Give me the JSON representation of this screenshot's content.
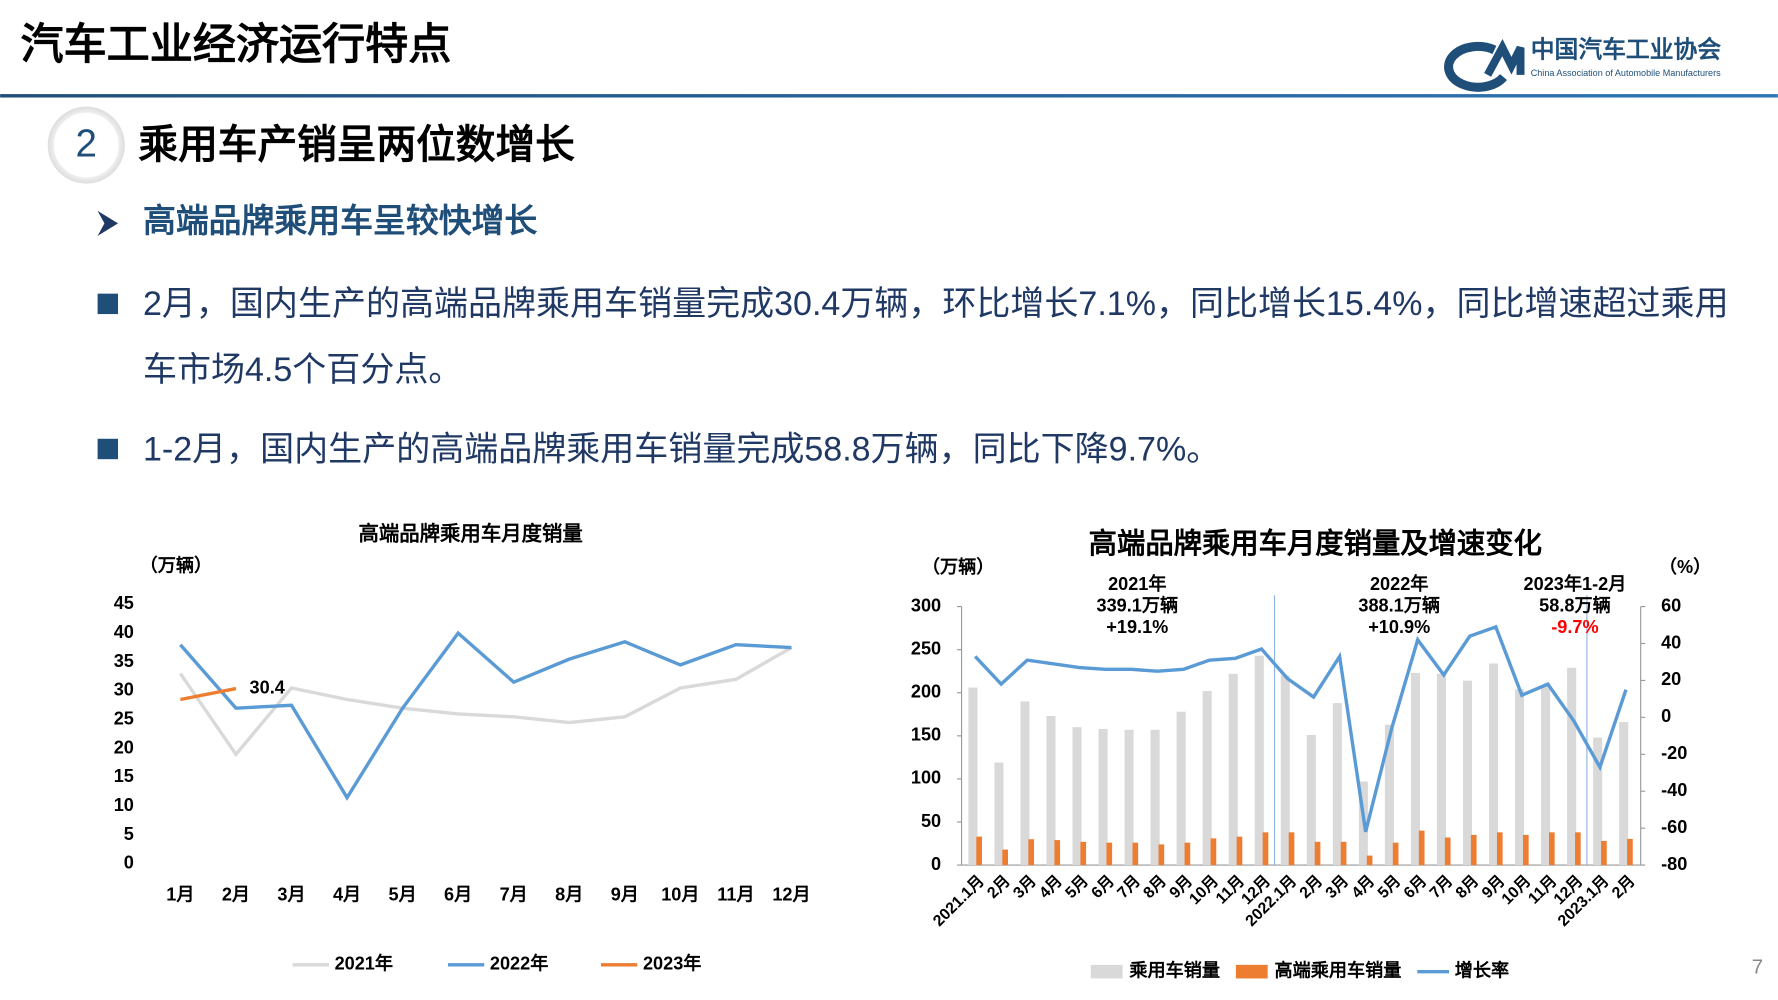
{
  "header": {
    "title": "汽车工业经济运行特点",
    "logo_name": "中国汽车工业协会",
    "logo_en": "China Association of Automobile Manufacturers"
  },
  "section": {
    "number": "2",
    "title": "乘用车产销呈两位数增长"
  },
  "subheading": "高端品牌乘用车呈较快增长",
  "bullets": [
    "2月，国内生产的高端品牌乘用车销量完成30.4万辆，环比增长7.1%，同比增长15.4%，同比增速超过乘用车市场4.5个百分点。",
    "1-2月，国内生产的高端品牌乘用车销量完成58.8万辆，同比下降9.7%。"
  ],
  "page_number": "7",
  "chart_data": [
    {
      "type": "line",
      "title": "高端品牌乘用车月度销量",
      "y_label": "（万辆）",
      "categories": [
        "1月",
        "2月",
        "3月",
        "4月",
        "5月",
        "6月",
        "7月",
        "8月",
        "9月",
        "10月",
        "11月",
        "12月"
      ],
      "ylim": [
        0,
        45
      ],
      "yticks": [
        0,
        5,
        10,
        15,
        20,
        25,
        30,
        35,
        40,
        45
      ],
      "grid": false,
      "legend": "bottom",
      "series": [
        {
          "name": "2021年",
          "color": "#d9d9d9",
          "values": [
            33,
            19,
            30.5,
            28.5,
            27,
            26,
            25.5,
            24.5,
            25.5,
            30.5,
            32,
            37.5
          ]
        },
        {
          "name": "2022年",
          "color": "#5b9bd5",
          "values": [
            38,
            27,
            27.5,
            11.5,
            27,
            40,
            31.5,
            35.5,
            38.5,
            34.5,
            38,
            37.5
          ]
        },
        {
          "name": "2023年",
          "color": "#ed7d31",
          "values": [
            28.5,
            30.4,
            null,
            null,
            null,
            null,
            null,
            null,
            null,
            null,
            null,
            null
          ],
          "label_last": true
        }
      ]
    },
    {
      "type": "bar",
      "title": "高端品牌乘用车月度销量及增速变化",
      "y_label": "（万辆）",
      "y2_label": "（%）",
      "categories": [
        "2021.1月",
        "2月",
        "3月",
        "4月",
        "5月",
        "6月",
        "7月",
        "8月",
        "9月",
        "10月",
        "11月",
        "12月",
        "2022.1月",
        "2月",
        "3月",
        "4月",
        "5月",
        "6月",
        "7月",
        "8月",
        "9月",
        "10月",
        "11月",
        "12月",
        "2023.1月",
        "2月"
      ],
      "ylim": [
        0,
        300
      ],
      "yticks": [
        0,
        50,
        100,
        150,
        200,
        250,
        300
      ],
      "y2lim": [
        -80,
        60
      ],
      "y2ticks": [
        -80,
        -60,
        -40,
        -20,
        0,
        20,
        40,
        60
      ],
      "grid": false,
      "legend": "bottom",
      "series": [
        {
          "name": "乘用车销量",
          "color": "#d9d9d9",
          "values": [
            206,
            119,
            190,
            173,
            160,
            158,
            157,
            157,
            178,
            202,
            222,
            243,
            220,
            151,
            188,
            97,
            163,
            223,
            222,
            214,
            234,
            204,
            208,
            229,
            148,
            166
          ]
        },
        {
          "name": "高端乘用车销量",
          "color": "#ed7d31",
          "values": [
            33,
            18,
            30,
            29,
            27,
            26,
            26,
            24,
            26,
            31,
            33,
            38,
            38,
            27,
            27,
            11,
            26,
            40,
            32,
            35,
            38,
            35,
            38,
            38,
            28,
            30.4
          ]
        },
        {
          "name": "增长率",
          "color": "#5b9bd5",
          "axis": "y2",
          "type": "line",
          "values": [
            33,
            18,
            31,
            29,
            27,
            26,
            26,
            25,
            26,
            31,
            32,
            37,
            21,
            11,
            33,
            -62,
            -6,
            42,
            23,
            44,
            49,
            12,
            18,
            -2,
            -27,
            15
          ]
        }
      ],
      "annotations": [
        {
          "title": "2021年",
          "total": "339.1万辆",
          "growth": "+19.1%",
          "growth_color": "#000000"
        },
        {
          "title": "2022年",
          "total": "388.1万辆",
          "growth": "+10.9%",
          "growth_color": "#000000"
        },
        {
          "title": "2023年1-2月",
          "total": "58.8万辆",
          "growth": "-9.7%",
          "growth_color": "#ff0000"
        }
      ]
    }
  ]
}
